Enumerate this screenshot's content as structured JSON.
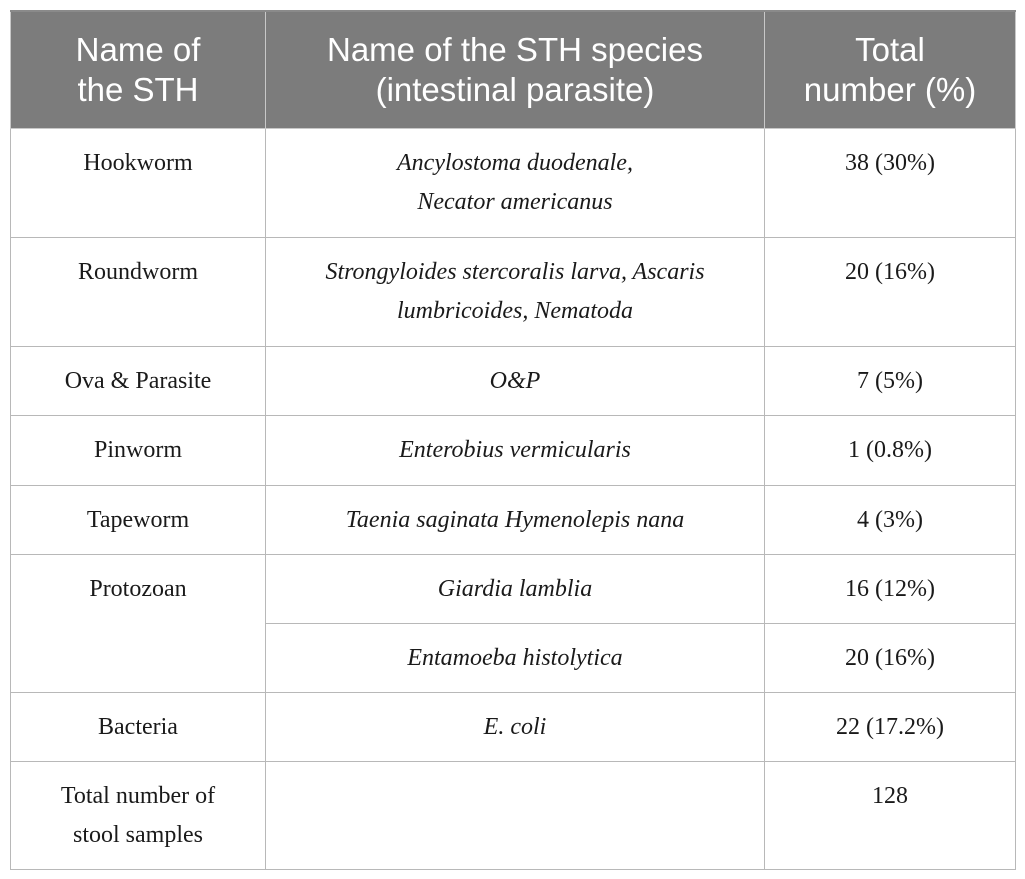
{
  "table": {
    "headers": {
      "col1": [
        "Name of",
        "the STH"
      ],
      "col2": [
        "Name of the STH species",
        "(intestinal parasite)"
      ],
      "col3": [
        "Total",
        "number (%)"
      ]
    },
    "rows": [
      {
        "name": "Hookworm",
        "species": [
          "Ancylostoma duodenale,",
          "Necator americanus"
        ],
        "total": "38 (30%)"
      },
      {
        "name": "Roundworm",
        "species": [
          "Strongyloides stercoralis larva, Ascaris",
          "lumbricoides, Nematoda"
        ],
        "total": "20 (16%)"
      },
      {
        "name": "Ova & Parasite",
        "species": [
          "O&P"
        ],
        "total": "7 (5%)"
      },
      {
        "name": "Pinworm",
        "species": [
          "Enterobius vermicularis"
        ],
        "total": "1 (0.8%)"
      },
      {
        "name": "Tapeworm",
        "species": [
          "Taenia saginata Hymenolepis nana"
        ],
        "total": "4 (3%)"
      },
      {
        "name": "Protozoan",
        "species": [
          "Giardia lamblia"
        ],
        "total": "16 (12%)"
      },
      {
        "name": "",
        "species": [
          "Entamoeba histolytica"
        ],
        "total": "20 (16%)"
      },
      {
        "name": "Bacteria",
        "species": [
          "E. coli"
        ],
        "total": "22 (17.2%)"
      },
      {
        "name": [
          "Total number of",
          "stool samples"
        ],
        "species": [
          ""
        ],
        "total": "128"
      }
    ]
  }
}
